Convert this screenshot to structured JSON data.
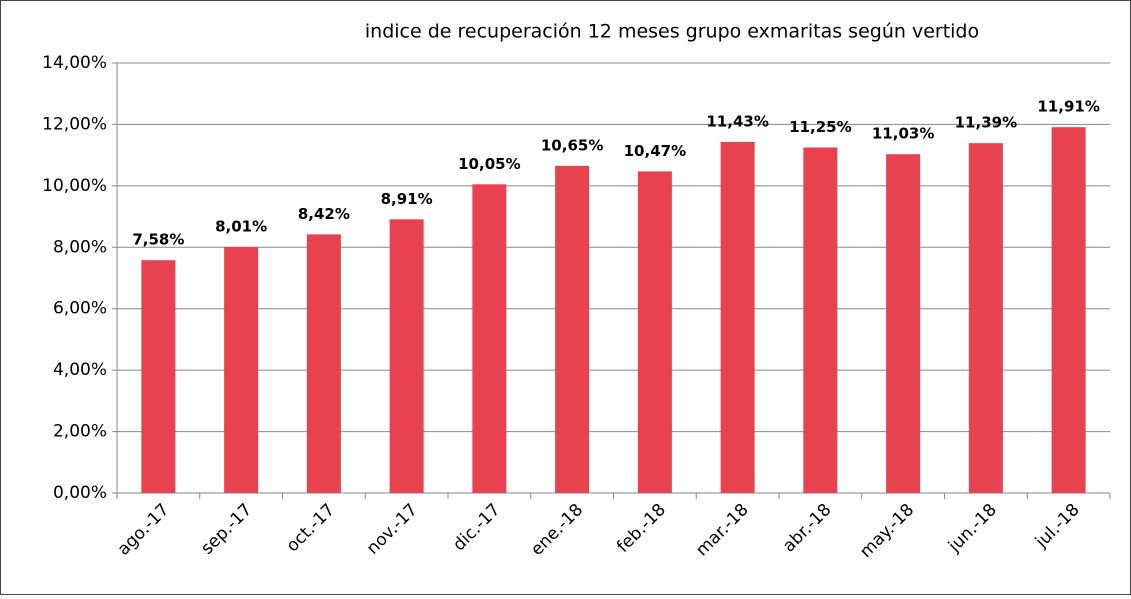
{
  "chart_data": {
    "type": "bar",
    "title": "indice de recuperación 12 meses grupo exmaritas según vertido",
    "categories": [
      "ago.-17",
      "sep.-17",
      "oct.-17",
      "nov.-17",
      "dic.-17",
      "ene.-18",
      "feb.-18",
      "mar.-18",
      "abr.-18",
      "may.-18",
      "jun.-18",
      "jul.-18"
    ],
    "values": [
      7.58,
      8.01,
      8.42,
      8.91,
      10.05,
      10.65,
      10.47,
      11.43,
      11.25,
      11.03,
      11.39,
      11.91
    ],
    "value_labels": [
      "7,58%",
      "8,01%",
      "8,42%",
      "8,91%",
      "10,05%",
      "10,65%",
      "10,47%",
      "11,43%",
      "11,25%",
      "11,03%",
      "11,39%",
      "11,91%"
    ],
    "color": "#e8414f",
    "ylim": [
      0,
      14
    ],
    "yticks": [
      {
        "value": 0,
        "label": "0,00%"
      },
      {
        "value": 2,
        "label": "2,00%"
      },
      {
        "value": 4,
        "label": "4,00%"
      },
      {
        "value": 6,
        "label": "6,00%"
      },
      {
        "value": 8,
        "label": "8,00%"
      },
      {
        "value": 10,
        "label": "10,00%"
      },
      {
        "value": 12,
        "label": "12,00%"
      },
      {
        "value": 14,
        "label": "14,00%"
      }
    ],
    "grid": true
  }
}
